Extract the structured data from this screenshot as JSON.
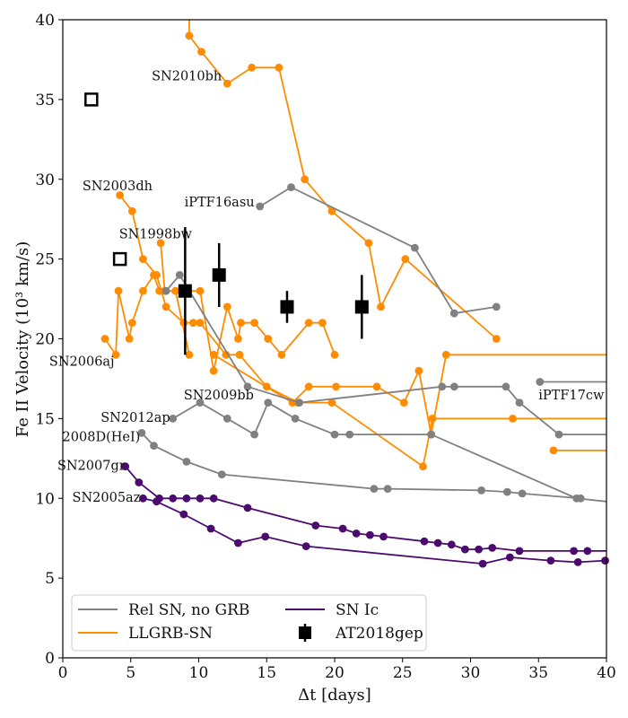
{
  "chart_data": {
    "type": "line",
    "xlabel": "Δt [days]",
    "ylabel": "Fe II Velocity (10³ km/s)",
    "xlim": [
      0,
      40
    ],
    "ylim": [
      0,
      40
    ],
    "xticks": [
      0,
      5,
      10,
      15,
      20,
      25,
      30,
      35,
      40
    ],
    "yticks": [
      0,
      5,
      10,
      15,
      20,
      25,
      30,
      35,
      40
    ],
    "grid": false,
    "legend_position": "bottom-left",
    "legend": [
      {
        "label": "Rel SN, no GRB",
        "marker": "line",
        "color": "#808080"
      },
      {
        "label": "SN Ic",
        "marker": "line",
        "color": "#4b0a6e"
      },
      {
        "label": "LLGRB-SN",
        "marker": "line",
        "color": "#ff8c00"
      },
      {
        "label": "AT2018gep",
        "marker": "square-errorbar",
        "color": "#000000"
      }
    ],
    "series": [
      {
        "group": "LLGRB-SN",
        "color": "#ff8c00",
        "points": [
          [
            9.3,
            40.5
          ],
          [
            9.3,
            39.0
          ],
          [
            10.2,
            38.0
          ],
          [
            12.1,
            36.0
          ],
          [
            13.9,
            37.0
          ],
          [
            15.9,
            37.0
          ],
          [
            17.8,
            30.0
          ],
          [
            19.8,
            28.0
          ],
          [
            22.5,
            26.0
          ],
          [
            23.4,
            22.0
          ],
          [
            25.2,
            25.0
          ],
          [
            31.9,
            20.0
          ]
        ]
      },
      {
        "group": "LLGRB-SN",
        "color": "#ff8c00",
        "points": [
          [
            4.2,
            29.0
          ],
          [
            5.1,
            28.0
          ],
          [
            5.9,
            25.0
          ],
          [
            6.9,
            24.0
          ],
          [
            7.6,
            22.0
          ],
          [
            8.9,
            21.0
          ],
          [
            9.6,
            21.0
          ],
          [
            10.1,
            21.0
          ],
          [
            12.0,
            19.0
          ],
          [
            13.0,
            19.0
          ],
          [
            15.0,
            17.0
          ],
          [
            17.3,
            16.0
          ],
          [
            19.8,
            16.0
          ],
          [
            26.5,
            12.0
          ],
          [
            27.2,
            15.0
          ],
          [
            33.1,
            15.0
          ],
          [
            40,
            15.0
          ]
        ]
      },
      {
        "group": "LLGRB-SN",
        "color": "#ff8c00",
        "points": [
          [
            7.2,
            26.0
          ],
          [
            7.5,
            23.0
          ],
          [
            8.3,
            23.0
          ],
          [
            9.3,
            19.0
          ]
        ]
      },
      {
        "group": "LLGRB-SN",
        "color": "#ff8c00",
        "points": [
          [
            3.1,
            20.0
          ],
          [
            3.9,
            19.0
          ],
          [
            4.1,
            23.0
          ],
          [
            4.9,
            20.0
          ],
          [
            5.1,
            21.0
          ],
          [
            5.9,
            23.0
          ],
          [
            6.7,
            24.0
          ],
          [
            7.1,
            23.0
          ],
          [
            10.1,
            23.0
          ],
          [
            11.1,
            18.0
          ],
          [
            12.1,
            22.0
          ],
          [
            12.9,
            20.0
          ],
          [
            13.1,
            21.0
          ],
          [
            14.1,
            21.0
          ],
          [
            15.1,
            20.0
          ],
          [
            16.1,
            19.0
          ],
          [
            18.1,
            21.0
          ],
          [
            19.1,
            21.0
          ],
          [
            20.0,
            19.0
          ]
        ]
      },
      {
        "group": "LLGRB-SN",
        "color": "#ff8c00",
        "points": [
          [
            11.1,
            19.0
          ],
          [
            16.9,
            16.0
          ],
          [
            18.1,
            17.0
          ],
          [
            20.1,
            17.0
          ],
          [
            23.1,
            17.0
          ],
          [
            25.1,
            16.0
          ],
          [
            26.2,
            18.0
          ],
          [
            27.1,
            14.0
          ],
          [
            28.2,
            19.0
          ],
          [
            40,
            19.0
          ]
        ]
      },
      {
        "group": "LLGRB-SN",
        "color": "#ff8c00",
        "points": [
          [
            36.1,
            13.0
          ],
          [
            40,
            13.0
          ]
        ]
      },
      {
        "group": "Rel SN, no GRB",
        "color": "#808080",
        "points": [
          [
            14.5,
            28.3
          ],
          [
            16.8,
            29.5
          ],
          [
            25.9,
            25.7
          ],
          [
            28.8,
            21.6
          ],
          [
            31.9,
            22.0
          ]
        ]
      },
      {
        "group": "Rel SN, no GRB",
        "color": "#808080",
        "points": [
          [
            7.6,
            23.0
          ],
          [
            8.6,
            24.0
          ],
          [
            13.6,
            17.0
          ],
          [
            17.4,
            16.0
          ],
          [
            27.9,
            17.0
          ],
          [
            28.8,
            17.0
          ],
          [
            32.6,
            17.0
          ],
          [
            33.6,
            16.0
          ],
          [
            36.5,
            14.0
          ],
          [
            40,
            14.0
          ]
        ]
      },
      {
        "group": "Rel SN, no GRB",
        "color": "#808080",
        "points": [
          [
            8.1,
            15.0
          ],
          [
            10.1,
            16.0
          ],
          [
            12.1,
            15.0
          ],
          [
            14.1,
            14.0
          ],
          [
            15.1,
            16.0
          ],
          [
            17.1,
            15.0
          ],
          [
            20.0,
            14.0
          ],
          [
            21.1,
            14.0
          ],
          [
            27.1,
            14.0
          ],
          [
            37.8,
            10.0
          ],
          [
            40,
            9.8
          ]
        ]
      },
      {
        "group": "Rel SN, no GRB",
        "color": "#808080",
        "points": [
          [
            5.8,
            14.1
          ],
          [
            6.7,
            13.3
          ],
          [
            9.1,
            12.3
          ],
          [
            11.7,
            11.5
          ],
          [
            22.9,
            10.6
          ],
          [
            23.9,
            10.6
          ],
          [
            30.8,
            10.5
          ],
          [
            32.7,
            10.4
          ],
          [
            33.8,
            10.3
          ],
          [
            38.1,
            10.0
          ]
        ]
      },
      {
        "group": "Rel SN, no GRB",
        "color": "#808080",
        "points": [
          [
            35.1,
            17.3
          ],
          [
            40,
            17.3
          ]
        ]
      },
      {
        "group": "SN Ic",
        "color": "#4b0a6e",
        "points": [
          [
            4.6,
            12.0
          ],
          [
            5.6,
            11.0
          ],
          [
            7.1,
            10.0
          ],
          [
            8.1,
            10.0
          ],
          [
            9.1,
            10.0
          ],
          [
            10.1,
            10.0
          ],
          [
            11.1,
            10.0
          ],
          [
            13.6,
            9.4
          ],
          [
            18.6,
            8.3
          ],
          [
            20.6,
            8.1
          ],
          [
            21.6,
            7.8
          ],
          [
            22.6,
            7.7
          ],
          [
            23.6,
            7.6
          ],
          [
            26.6,
            7.3
          ],
          [
            27.6,
            7.2
          ],
          [
            28.6,
            7.1
          ],
          [
            29.6,
            6.8
          ],
          [
            30.6,
            6.8
          ],
          [
            31.6,
            6.9
          ],
          [
            33.6,
            6.7
          ],
          [
            37.6,
            6.7
          ],
          [
            38.6,
            6.7
          ],
          [
            40,
            6.7
          ]
        ]
      },
      {
        "group": "SN Ic",
        "color": "#4b0a6e",
        "points": [
          [
            5.9,
            10.0
          ],
          [
            6.9,
            9.8
          ],
          [
            8.9,
            9.0
          ],
          [
            10.9,
            8.1
          ],
          [
            12.9,
            7.2
          ],
          [
            14.9,
            7.6
          ],
          [
            17.9,
            7.0
          ],
          [
            30.9,
            5.9
          ],
          [
            32.9,
            6.3
          ],
          [
            35.9,
            6.1
          ],
          [
            37.9,
            6.0
          ],
          [
            39.9,
            6.1
          ]
        ]
      }
    ],
    "at2018gep": {
      "label": "AT2018gep",
      "points": [
        {
          "x": 9.0,
          "y": 23.0,
          "err": 4.0
        },
        {
          "x": 11.5,
          "y": 24.0,
          "err": 2.0
        },
        {
          "x": 16.5,
          "y": 22.0,
          "err": 1.0
        },
        {
          "x": 22.0,
          "y": 22.0,
          "err": 2.0
        }
      ],
      "open_squares": [
        [
          2.1,
          35.0
        ],
        [
          4.2,
          25.0
        ]
      ]
    },
    "annotations": [
      {
        "text": "SN2010bh",
        "x": 11.7,
        "y": 36.2,
        "anchor": "end"
      },
      {
        "text": "SN2003dh",
        "x": 6.6,
        "y": 29.3,
        "anchor": "end"
      },
      {
        "text": "iPTF16asu",
        "x": 14.1,
        "y": 28.3,
        "anchor": "end"
      },
      {
        "text": "SN1998bw",
        "x": 9.5,
        "y": 26.3,
        "anchor": "end"
      },
      {
        "text": "SN2006aj",
        "x": 3.8,
        "y": 18.3,
        "anchor": "end"
      },
      {
        "text": "SN2009bb",
        "x": 8.9,
        "y": 16.2,
        "anchor": "start"
      },
      {
        "text": "iPTF17cw",
        "x": 35.0,
        "y": 16.2,
        "anchor": "start"
      },
      {
        "text": "SN2012ap",
        "x": 7.9,
        "y": 14.8,
        "anchor": "end"
      },
      {
        "text": "2008D(HeI)",
        "x": 5.7,
        "y": 13.6,
        "anchor": "end"
      },
      {
        "text": "SN2007gr",
        "x": 4.6,
        "y": 11.8,
        "anchor": "end"
      },
      {
        "text": "SN2005az",
        "x": 5.7,
        "y": 9.8,
        "anchor": "end"
      }
    ]
  }
}
